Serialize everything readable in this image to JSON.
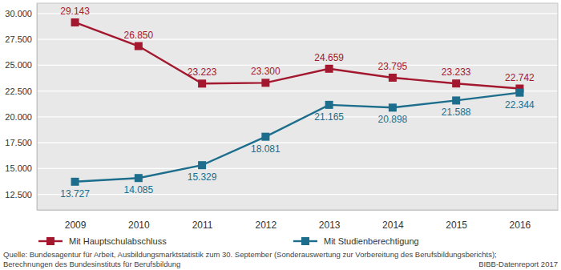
{
  "chart_data": {
    "type": "line",
    "categories": [
      "2009",
      "2010",
      "2011",
      "2012",
      "2013",
      "2014",
      "2015",
      "2016"
    ],
    "series": [
      {
        "name": "Mit Hauptschulabschluss",
        "color": "#a3182f",
        "marker": "square",
        "line_style": "solid",
        "values": [
          29143,
          26850,
          23223,
          23300,
          24659,
          23795,
          23233,
          22742
        ],
        "value_labels": [
          "29.143",
          "26.850",
          "23.223",
          "23.300",
          "24.659",
          "23.795",
          "23.233",
          "22.742"
        ]
      },
      {
        "name": "Mit Studienberechtigung",
        "color": "#1c6e8c",
        "marker": "square",
        "line_style": "solid",
        "values": [
          13727,
          14085,
          15329,
          18081,
          21165,
          20898,
          21588,
          22344
        ],
        "value_labels": [
          "13.727",
          "14.085",
          "15.329",
          "18.081",
          "21.165",
          "20.898",
          "21.588",
          "22.344"
        ]
      }
    ],
    "ylim": [
      11000,
      31000
    ],
    "yticks": [
      {
        "value": 12500,
        "label": "12.500"
      },
      {
        "value": 15000,
        "label": "15.000"
      },
      {
        "value": 17500,
        "label": "17.500"
      },
      {
        "value": 20000,
        "label": "20.000"
      },
      {
        "value": 22500,
        "label": "22.500"
      },
      {
        "value": 25000,
        "label": "25.000"
      },
      {
        "value": 27500,
        "label": "27.500"
      },
      {
        "value": 30000,
        "label": "30.000"
      }
    ],
    "grid": true,
    "data_labels": true,
    "legend": "bottom-left",
    "source": [
      "Quelle: Bundesagentur für Arbeit, Ausbildungsmarktstatistik zum 30. September (Sonderauswertung zur Vorbereitung des Berufsbildungsberichts);",
      "Berechnungen des Bundesinstituts für Berufsbildung"
    ],
    "annotations": [
      "BIBB-Datenreport 2017"
    ]
  }
}
